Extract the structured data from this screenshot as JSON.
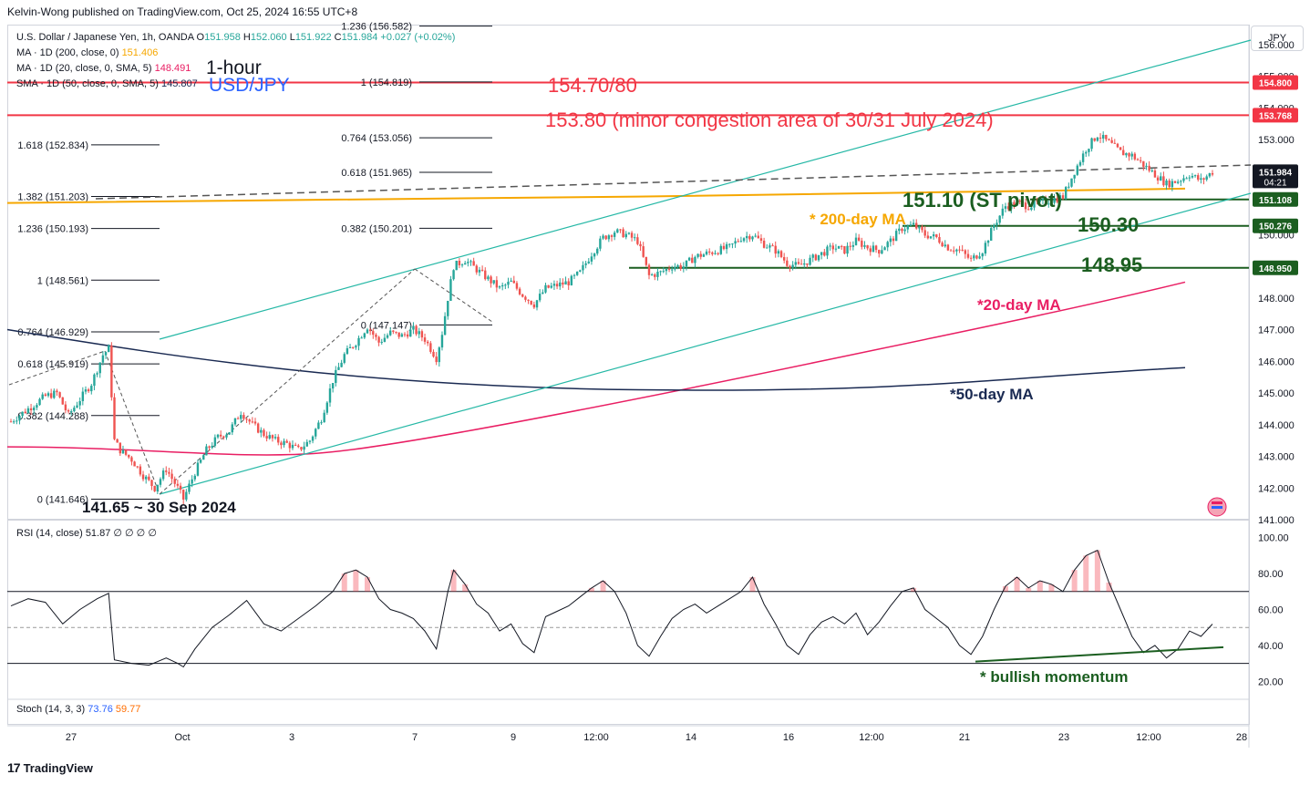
{
  "header": {
    "publisher": "Kelvin-Wong published on TradingView.com, Oct 25, 2024 16:55 UTC+8"
  },
  "footer": {
    "brand": "TradingView",
    "logo": "tradingview-logo-icon"
  },
  "currency_button": "JPY",
  "legend": {
    "symbol": "U.S. Dollar / Japanese Yen, 1h, OANDA",
    "o_label": "O",
    "o": "151.958",
    "h_label": "H",
    "h": "152.060",
    "l_label": "L",
    "l": "151.922",
    "c_label": "C",
    "c": "151.984",
    "change": "+0.027 (+0.02%)",
    "ma200": "MA · 1D (200, close, 0)",
    "ma200_val": "151.406",
    "ma20": "MA · 1D (20, close, 0, SMA, 5)",
    "ma20_val": "148.491",
    "sma50": "SMA · 1D (50, close, 0, SMA, 5)",
    "sma50_val": "145.807",
    "rsi": "RSI (14, close)",
    "rsi_val": "51.87",
    "rsi_extra": "∅ ∅ ∅ ∅",
    "stoch": "Stoch (14, 3, 3)",
    "stoch_k": "73.76",
    "stoch_d": "59.77"
  },
  "annotations": {
    "title1": "1-hour",
    "title2": "USD/JPY",
    "r1": "154.70/80",
    "r2": "153.80 (minor congestion area of 30/31 July 2024)",
    "pivot": "151.10 (ST pivot)",
    "s1": "150.30",
    "s2": "148.95",
    "low": "141.65 ~ 30 Sep 2024",
    "ma200": "* 200-day MA",
    "ma20": "*20-day MA",
    "ma50": "*50-day MA",
    "momentum": "* bullish momentum"
  },
  "colors": {
    "up": "#26a69a",
    "down": "#ef5350",
    "red_text": "#f23645",
    "green_text": "#1b5e20",
    "ma200": "#f6a700",
    "ma20": "#e91e63",
    "ma50": "#1a2a52",
    "channel": "#26b8a6",
    "title_blue": "#2962ff"
  },
  "chart_data": [
    {
      "type": "candlestick",
      "title": "U.S. Dollar / Japanese Yen, 1h, OANDA",
      "ylim": [
        141.0,
        156.6
      ],
      "y_ticks": [
        "156.000",
        "155.000",
        "154.000",
        "153.000",
        "152.000",
        "151.000",
        "150.000",
        "149.000",
        "148.000",
        "147.000",
        "146.000",
        "145.000",
        "144.000",
        "143.000",
        "142.000",
        "141.000"
      ],
      "x_ticks": [
        "27",
        "Oct",
        "3",
        "7",
        "9",
        "12:00",
        "14",
        "16",
        "12:00",
        "21",
        "23",
        "12:00",
        "28"
      ],
      "price_labels": [
        {
          "value": "154.800",
          "color": "#f23645"
        },
        {
          "value": "153.768",
          "color": "#f23645"
        },
        {
          "value": "151.984",
          "color": "#131722",
          "sub": "04:21"
        },
        {
          "value": "151.108",
          "color": "#1b5e20"
        },
        {
          "value": "150.276",
          "color": "#1b5e20"
        },
        {
          "value": "148.950",
          "color": "#1b5e20"
        }
      ],
      "horizontal_levels": [
        154.8,
        153.768,
        151.108,
        150.276,
        148.95
      ],
      "fib_left": [
        {
          "label": "1.618 (152.834)",
          "value": 152.834
        },
        {
          "label": "1.382 (151.203)",
          "value": 151.203
        },
        {
          "label": "1.236 (150.193)",
          "value": 150.193
        },
        {
          "label": "1 (148.561)",
          "value": 148.561
        },
        {
          "label": "0.764 (146.929)",
          "value": 146.929
        },
        {
          "label": "0.618 (145.919)",
          "value": 145.919
        },
        {
          "label": "0.382 (144.288)",
          "value": 144.288
        },
        {
          "label": "0 (141.646)",
          "value": 141.646
        }
      ],
      "fib_right": [
        {
          "label": "1.236 (156.582)",
          "value": 156.582
        },
        {
          "label": "1 (154.819)",
          "value": 154.819
        },
        {
          "label": "0.764 (153.056)",
          "value": 153.056
        },
        {
          "label": "0.618 (151.965)",
          "value": 151.965
        },
        {
          "label": "0.382 (150.201)",
          "value": 150.201
        },
        {
          "label": "0 (147.147)",
          "value": 147.147
        }
      ],
      "close_path": [
        [
          0,
          144.1
        ],
        [
          3,
          144.5
        ],
        [
          6,
          144.9
        ],
        [
          8,
          145.0
        ],
        [
          10,
          144.3
        ],
        [
          12,
          144.8
        ],
        [
          14,
          145.3
        ],
        [
          16,
          146.2
        ],
        [
          17,
          146.4
        ],
        [
          18,
          143.5
        ],
        [
          19,
          143.2
        ],
        [
          21,
          142.9
        ],
        [
          23,
          142.4
        ],
        [
          25,
          142.0
        ],
        [
          27,
          142.6
        ],
        [
          29,
          142.0
        ],
        [
          30,
          141.65
        ],
        [
          32,
          142.5
        ],
        [
          34,
          143.2
        ],
        [
          36,
          143.6
        ],
        [
          38,
          143.8
        ],
        [
          40,
          144.4
        ],
        [
          42,
          144.0
        ],
        [
          44,
          143.7
        ],
        [
          46,
          143.5
        ],
        [
          48,
          143.4
        ],
        [
          50,
          143.2
        ],
        [
          52,
          143.5
        ],
        [
          54,
          144.2
        ],
        [
          56,
          145.4
        ],
        [
          58,
          146.2
        ],
        [
          60,
          146.6
        ],
        [
          62,
          147.1
        ],
        [
          64,
          146.6
        ],
        [
          66,
          146.9
        ],
        [
          68,
          146.8
        ],
        [
          70,
          147.0
        ],
        [
          72,
          146.7
        ],
        [
          74,
          146.1
        ],
        [
          75,
          146.9
        ],
        [
          76,
          148.0
        ],
        [
          77,
          149.0
        ],
        [
          79,
          149.2
        ],
        [
          81,
          148.9
        ],
        [
          83,
          148.6
        ],
        [
          85,
          148.3
        ],
        [
          87,
          148.5
        ],
        [
          89,
          148.1
        ],
        [
          91,
          147.8
        ],
        [
          93,
          148.3
        ],
        [
          95,
          148.4
        ],
        [
          97,
          148.5
        ],
        [
          99,
          148.8
        ],
        [
          101,
          149.4
        ],
        [
          103,
          149.9
        ],
        [
          105,
          150.1
        ],
        [
          107,
          150.0
        ],
        [
          109,
          149.8
        ],
        [
          111,
          148.7
        ],
        [
          113,
          148.8
        ],
        [
          115,
          149.0
        ],
        [
          117,
          149.0
        ],
        [
          119,
          149.3
        ],
        [
          121,
          149.4
        ],
        [
          123,
          149.5
        ],
        [
          125,
          149.6
        ],
        [
          127,
          149.9
        ],
        [
          129,
          150.0
        ],
        [
          131,
          149.7
        ],
        [
          133,
          149.5
        ],
        [
          135,
          149.1
        ],
        [
          137,
          149.0
        ],
        [
          139,
          149.2
        ],
        [
          141,
          149.4
        ],
        [
          143,
          149.6
        ],
        [
          145,
          149.5
        ],
        [
          147,
          149.8
        ],
        [
          149,
          149.6
        ],
        [
          151,
          149.5
        ],
        [
          153,
          149.8
        ],
        [
          155,
          150.2
        ],
        [
          157,
          150.3
        ],
        [
          159,
          150.0
        ],
        [
          161,
          149.9
        ],
        [
          163,
          149.6
        ],
        [
          165,
          149.5
        ],
        [
          167,
          149.2
        ],
        [
          169,
          149.5
        ],
        [
          171,
          150.3
        ],
        [
          173,
          150.9
        ],
        [
          175,
          151.0
        ],
        [
          177,
          150.9
        ],
        [
          179,
          151.0
        ],
        [
          181,
          151.1
        ],
        [
          183,
          151.2
        ],
        [
          185,
          152.0
        ],
        [
          187,
          152.7
        ],
        [
          189,
          153.15
        ],
        [
          191,
          152.9
        ],
        [
          193,
          152.6
        ],
        [
          195,
          152.5
        ],
        [
          197,
          152.2
        ],
        [
          199,
          151.9
        ],
        [
          201,
          151.6
        ],
        [
          203,
          151.7
        ],
        [
          205,
          151.9
        ],
        [
          207,
          151.7
        ],
        [
          209,
          151.98
        ]
      ]
    },
    {
      "type": "line",
      "title": "RSI (14, close)",
      "ylim": [
        10,
        110
      ],
      "y_ticks": [
        "100.00",
        "80.00",
        "60.00",
        "40.00",
        "20.00"
      ],
      "bands": [
        70,
        30
      ],
      "values": [
        [
          0,
          62
        ],
        [
          3,
          66
        ],
        [
          6,
          64
        ],
        [
          9,
          52
        ],
        [
          12,
          60
        ],
        [
          15,
          66
        ],
        [
          17,
          69
        ],
        [
          18,
          32
        ],
        [
          21,
          30
        ],
        [
          24,
          29
        ],
        [
          27,
          33
        ],
        [
          29,
          30
        ],
        [
          30,
          28
        ],
        [
          32,
          38
        ],
        [
          35,
          50
        ],
        [
          38,
          57
        ],
        [
          41,
          65
        ],
        [
          44,
          52
        ],
        [
          47,
          48
        ],
        [
          50,
          55
        ],
        [
          53,
          62
        ],
        [
          56,
          70
        ],
        [
          58,
          80
        ],
        [
          60,
          82
        ],
        [
          62,
          78
        ],
        [
          64,
          66
        ],
        [
          66,
          60
        ],
        [
          68,
          58
        ],
        [
          70,
          55
        ],
        [
          72,
          48
        ],
        [
          74,
          38
        ],
        [
          76,
          70
        ],
        [
          77,
          82
        ],
        [
          79,
          74
        ],
        [
          81,
          63
        ],
        [
          83,
          58
        ],
        [
          85,
          48
        ],
        [
          87,
          52
        ],
        [
          89,
          41
        ],
        [
          91,
          36
        ],
        [
          93,
          56
        ],
        [
          95,
          59
        ],
        [
          97,
          62
        ],
        [
          99,
          67
        ],
        [
          101,
          72
        ],
        [
          103,
          76
        ],
        [
          105,
          70
        ],
        [
          107,
          58
        ],
        [
          109,
          40
        ],
        [
          111,
          34
        ],
        [
          113,
          45
        ],
        [
          115,
          55
        ],
        [
          117,
          60
        ],
        [
          119,
          63
        ],
        [
          121,
          58
        ],
        [
          123,
          62
        ],
        [
          125,
          66
        ],
        [
          127,
          70
        ],
        [
          129,
          78
        ],
        [
          131,
          63
        ],
        [
          133,
          52
        ],
        [
          135,
          40
        ],
        [
          137,
          35
        ],
        [
          139,
          46
        ],
        [
          141,
          53
        ],
        [
          143,
          56
        ],
        [
          145,
          52
        ],
        [
          147,
          58
        ],
        [
          149,
          46
        ],
        [
          151,
          53
        ],
        [
          153,
          62
        ],
        [
          155,
          70
        ],
        [
          157,
          72
        ],
        [
          159,
          60
        ],
        [
          161,
          55
        ],
        [
          163,
          50
        ],
        [
          165,
          40
        ],
        [
          167,
          35
        ],
        [
          169,
          45
        ],
        [
          171,
          60
        ],
        [
          173,
          73
        ],
        [
          175,
          78
        ],
        [
          177,
          72
        ],
        [
          179,
          76
        ],
        [
          181,
          74
        ],
        [
          183,
          70
        ],
        [
          185,
          82
        ],
        [
          187,
          90
        ],
        [
          189,
          93
        ],
        [
          191,
          75
        ],
        [
          193,
          60
        ],
        [
          195,
          45
        ],
        [
          197,
          36
        ],
        [
          199,
          40
        ],
        [
          201,
          33
        ],
        [
          203,
          38
        ],
        [
          205,
          48
        ],
        [
          207,
          45
        ],
        [
          209,
          51.87
        ]
      ]
    }
  ]
}
